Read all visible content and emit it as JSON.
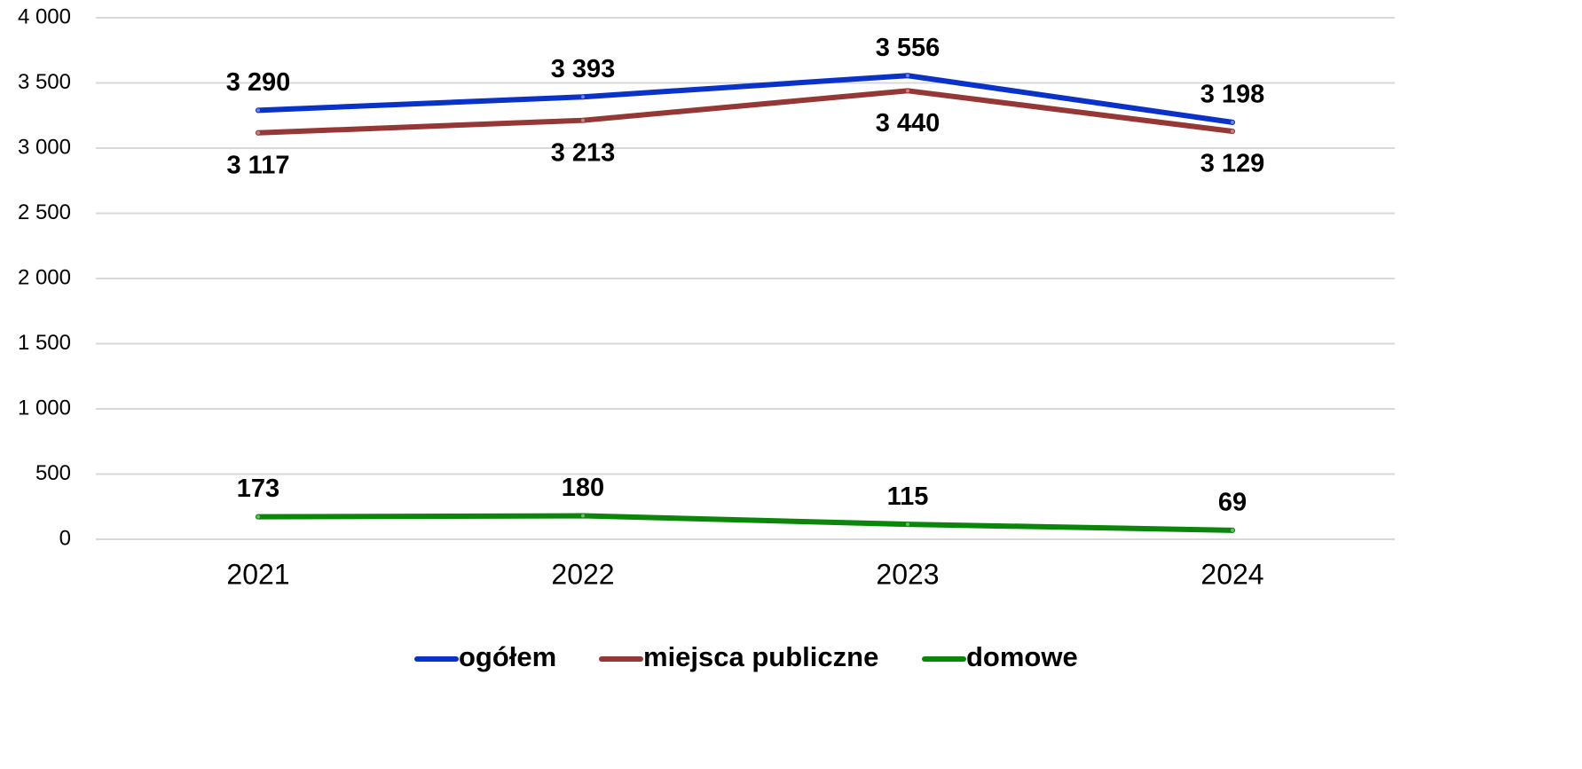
{
  "chart_data": {
    "type": "line",
    "categories": [
      "2021",
      "2022",
      "2023",
      "2024"
    ],
    "series": [
      {
        "name": "ogółem",
        "color": "#0a32c8",
        "values": [
          3290,
          3393,
          3556,
          3198
        ],
        "value_labels": [
          "3 290",
          "3 393",
          "3 556",
          "3 198"
        ]
      },
      {
        "name": "miejsca publiczne",
        "color": "#953735",
        "values": [
          3117,
          3213,
          3440,
          3129
        ],
        "value_labels": [
          "3 117",
          "3 213",
          "3 440",
          "3 129"
        ]
      },
      {
        "name": "domowe",
        "color": "#0a870a",
        "values": [
          173,
          180,
          115,
          69
        ]
      }
    ],
    "ylim": [
      0,
      4000
    ],
    "yticks": [
      0,
      500,
      {
        "value": 1000,
        "label": "1 000"
      },
      {
        "value": 1500,
        "label": "1 500"
      },
      {
        "value": 2000,
        "label": "2 000"
      },
      {
        "value": 2500,
        "label": "2 500"
      },
      {
        "value": 3000,
        "label": "3 000"
      },
      {
        "value": 3500,
        "label": "3 500"
      },
      {
        "value": 4000,
        "label": "4 000"
      }
    ],
    "grid": true,
    "legend": "bottom"
  }
}
